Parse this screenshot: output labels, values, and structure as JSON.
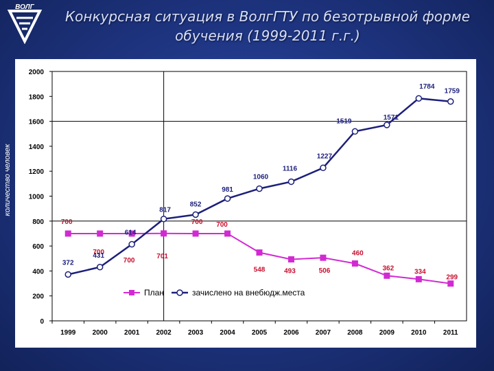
{
  "header": {
    "logo_text": "ВОЛГ",
    "title_line1": "Конкурсная ситуация в ВолгГТУ по безотрывной форме",
    "title_line2": "обучения (1999-2011 г.г.)"
  },
  "colors": {
    "plan": "#d22ad2",
    "enrolled": "#1c1f7a",
    "plan_label": "#c8102e",
    "enrolled_label": "#1c1f7a"
  },
  "chart_data": {
    "type": "line",
    "ylabel": "количество человек",
    "ylim": [
      0,
      2000
    ],
    "yticks": [
      0,
      200,
      400,
      600,
      800,
      1000,
      1200,
      1400,
      1600,
      1800,
      2000
    ],
    "categories": [
      "1999",
      "2000",
      "2001",
      "2002",
      "2003",
      "2004",
      "2005",
      "2006",
      "2007",
      "2008",
      "2009",
      "2010",
      "2011"
    ],
    "series": [
      {
        "name": "План",
        "values": [
          700,
          700,
          700,
          701,
          700,
          700,
          548,
          493,
          506,
          460,
          362,
          334,
          299
        ],
        "labels": [
          "700",
          "700",
          "700",
          "701",
          "700",
          "700",
          "548",
          "493",
          "506",
          "460",
          "362",
          "334",
          "299"
        ]
      },
      {
        "name": "зачислено на внебюдж.места",
        "values": [
          372,
          431,
          614,
          817,
          852,
          981,
          1060,
          1116,
          1227,
          1519,
          1571,
          1784,
          1759
        ],
        "labels": [
          "372",
          "431",
          "614",
          "817",
          "852",
          "981",
          "1060",
          "1116",
          "1227",
          "1519",
          "1571",
          "1784",
          "1759"
        ]
      }
    ],
    "legend": {
      "position": "bottom-center"
    }
  }
}
